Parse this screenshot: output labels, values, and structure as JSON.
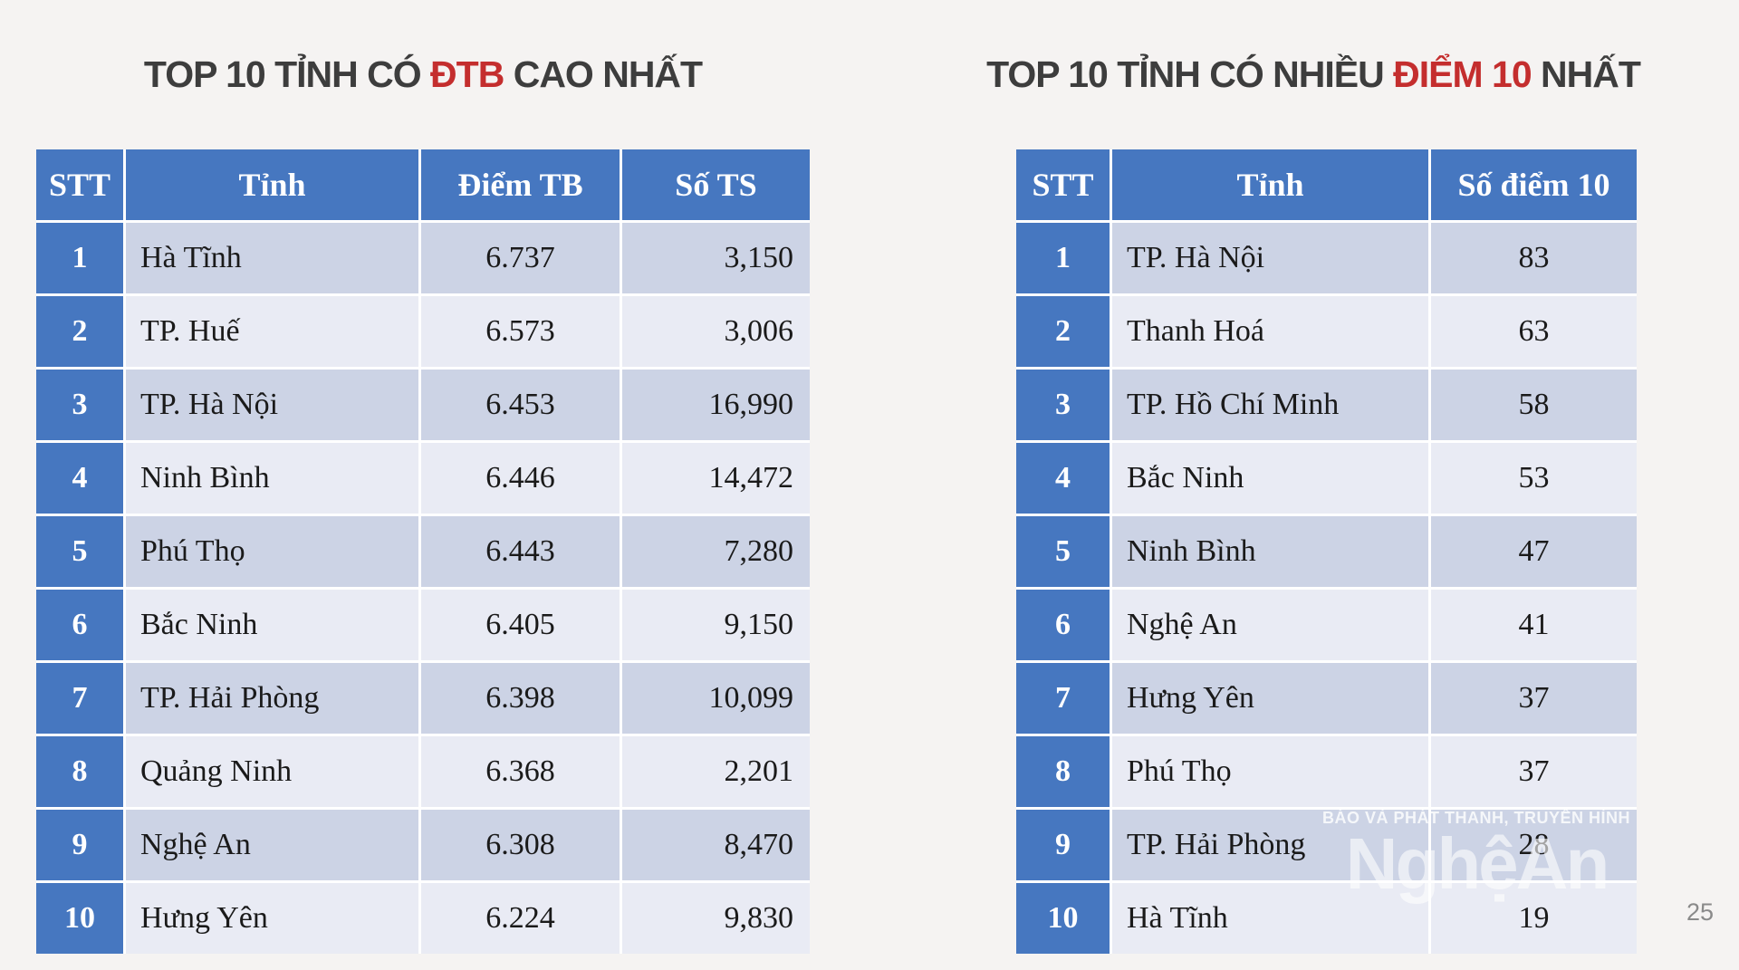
{
  "page": {
    "page_number": "25",
    "background_color": "#f5f3f2"
  },
  "colors": {
    "header_blue": "#4677c0",
    "band_dark": "#ccd3e5",
    "band_light": "#e9ebf4",
    "accent_red": "#c42e2e",
    "title_gray": "#3d3d3d",
    "page_number_gray": "#8a8a8a"
  },
  "left_table": {
    "title": {
      "pre": "TOP 10 TỈNH CÓ ",
      "accent": "ĐTB",
      "post": " CAO NHẤT"
    },
    "headers": [
      "STT",
      "Tỉnh",
      "Điểm TB",
      "Số TS"
    ],
    "rows": [
      {
        "stt": "1",
        "province": "Hà Tĩnh",
        "avg": "6.737",
        "candidates": "3,150"
      },
      {
        "stt": "2",
        "province": "TP. Huế",
        "avg": "6.573",
        "candidates": "3,006"
      },
      {
        "stt": "3",
        "province": "TP. Hà Nội",
        "avg": "6.453",
        "candidates": "16,990"
      },
      {
        "stt": "4",
        "province": "Ninh Bình",
        "avg": "6.446",
        "candidates": "14,472"
      },
      {
        "stt": "5",
        "province": "Phú Thọ",
        "avg": "6.443",
        "candidates": "7,280"
      },
      {
        "stt": "6",
        "province": "Bắc Ninh",
        "avg": "6.405",
        "candidates": "9,150"
      },
      {
        "stt": "7",
        "province": "TP. Hải Phòng",
        "avg": "6.398",
        "candidates": "10,099"
      },
      {
        "stt": "8",
        "province": "Quảng Ninh",
        "avg": "6.368",
        "candidates": "2,201"
      },
      {
        "stt": "9",
        "province": "Nghệ An",
        "avg": "6.308",
        "candidates": "8,470"
      },
      {
        "stt": "10",
        "province": "Hưng Yên",
        "avg": "6.224",
        "candidates": "9,830"
      }
    ]
  },
  "right_table": {
    "title": {
      "pre": "TOP 10 TỈNH CÓ NHIỀU ",
      "accent": "ĐIỂM 10",
      "post": " NHẤT"
    },
    "headers": [
      "STT",
      "Tỉnh",
      "Số điểm 10"
    ],
    "rows": [
      {
        "stt": "1",
        "province": "TP. Hà Nội",
        "tens": "83"
      },
      {
        "stt": "2",
        "province": "Thanh Hoá",
        "tens": "63"
      },
      {
        "stt": "3",
        "province": "TP. Hồ Chí Minh",
        "tens": "58"
      },
      {
        "stt": "4",
        "province": "Bắc Ninh",
        "tens": "53"
      },
      {
        "stt": "5",
        "province": "Ninh Bình",
        "tens": "47"
      },
      {
        "stt": "6",
        "province": "Nghệ An",
        "tens": "41"
      },
      {
        "stt": "7",
        "province": "Hưng Yên",
        "tens": "37"
      },
      {
        "stt": "8",
        "province": "Phú Thọ",
        "tens": "37"
      },
      {
        "stt": "9",
        "province": "TP. Hải Phòng",
        "tens": "28"
      },
      {
        "stt": "10",
        "province": "Hà Tĩnh",
        "tens": "19"
      }
    ]
  },
  "watermark": {
    "line1": "BÁO VÀ PHÁT THANH, TRUYỀN HÌNH",
    "line2": "NghệAn"
  },
  "chart_data": [
    {
      "type": "table",
      "title": "TOP 10 TỈNH CÓ ĐTB CAO NHẤT",
      "columns": [
        "STT",
        "Tỉnh",
        "Điểm TB",
        "Số TS"
      ],
      "rows": [
        [
          1,
          "Hà Tĩnh",
          6.737,
          3150
        ],
        [
          2,
          "TP. Huế",
          6.573,
          3006
        ],
        [
          3,
          "TP. Hà Nội",
          6.453,
          16990
        ],
        [
          4,
          "Ninh Bình",
          6.446,
          14472
        ],
        [
          5,
          "Phú Thọ",
          6.443,
          7280
        ],
        [
          6,
          "Bắc Ninh",
          6.405,
          9150
        ],
        [
          7,
          "TP. Hải Phòng",
          6.398,
          10099
        ],
        [
          8,
          "Quảng Ninh",
          6.368,
          2201
        ],
        [
          9,
          "Nghệ An",
          6.308,
          8470
        ],
        [
          10,
          "Hưng Yên",
          6.224,
          9830
        ]
      ]
    },
    {
      "type": "table",
      "title": "TOP 10 TỈNH CÓ NHIỀU ĐIỂM 10 NHẤT",
      "columns": [
        "STT",
        "Tỉnh",
        "Số điểm 10"
      ],
      "rows": [
        [
          1,
          "TP. Hà Nội",
          83
        ],
        [
          2,
          "Thanh Hoá",
          63
        ],
        [
          3,
          "TP. Hồ Chí Minh",
          58
        ],
        [
          4,
          "Bắc Ninh",
          53
        ],
        [
          5,
          "Ninh Bình",
          47
        ],
        [
          6,
          "Nghệ An",
          41
        ],
        [
          7,
          "Hưng Yên",
          37
        ],
        [
          8,
          "Phú Thọ",
          37
        ],
        [
          9,
          "TP. Hải Phòng",
          28
        ],
        [
          10,
          "Hà Tĩnh",
          19
        ]
      ]
    }
  ]
}
